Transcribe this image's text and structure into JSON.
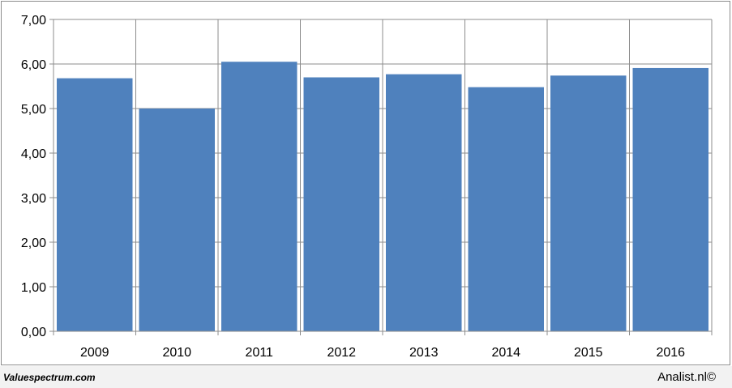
{
  "chart_data": {
    "type": "bar",
    "categories": [
      "2009",
      "2010",
      "2011",
      "2012",
      "2013",
      "2014",
      "2015",
      "2016"
    ],
    "values": [
      5.68,
      5.0,
      6.05,
      5.7,
      5.77,
      5.48,
      5.74,
      5.91
    ],
    "yticks": [
      "0,00",
      "1,00",
      "2,00",
      "3,00",
      "4,00",
      "5,00",
      "6,00",
      "7,00"
    ],
    "ylim": [
      0,
      7
    ],
    "grid": true,
    "colors": {
      "bar": "#4f81bd",
      "grid": "#8c8c8c"
    }
  },
  "footer": {
    "source": "Valuespectrum.com",
    "credit": "Analist.nl©"
  }
}
